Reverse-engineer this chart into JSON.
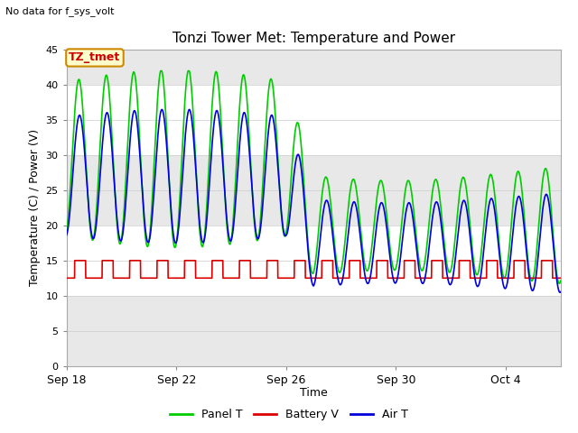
{
  "title": "Tonzi Tower Met: Temperature and Power",
  "subtitle": "No data for f_sys_volt",
  "xlabel": "Time",
  "ylabel": "Temperature (C) / Power (V)",
  "ylim": [
    0,
    45
  ],
  "yticks": [
    0,
    5,
    10,
    15,
    20,
    25,
    30,
    35,
    40,
    45
  ],
  "xtick_positions": [
    0,
    4,
    8,
    12,
    16
  ],
  "xtick_labels": [
    "Sep 18",
    "Sep 22",
    "Sep 26",
    "Sep 30",
    "Oct 4"
  ],
  "xlim": [
    0,
    18
  ],
  "fig_bg": "#ffffff",
  "plot_bg": "#ffffff",
  "band_color": "#e8e8e8",
  "grid_color": "#cccccc",
  "panel_color": "#00cc00",
  "battery_color": "#dd0000",
  "air_color": "#0000dd",
  "annotation_text": "TZ_tmet",
  "annotation_bg": "#ffffcc",
  "annotation_border": "#cc8800",
  "legend_items": [
    "Panel T",
    "Battery V",
    "Air T"
  ]
}
